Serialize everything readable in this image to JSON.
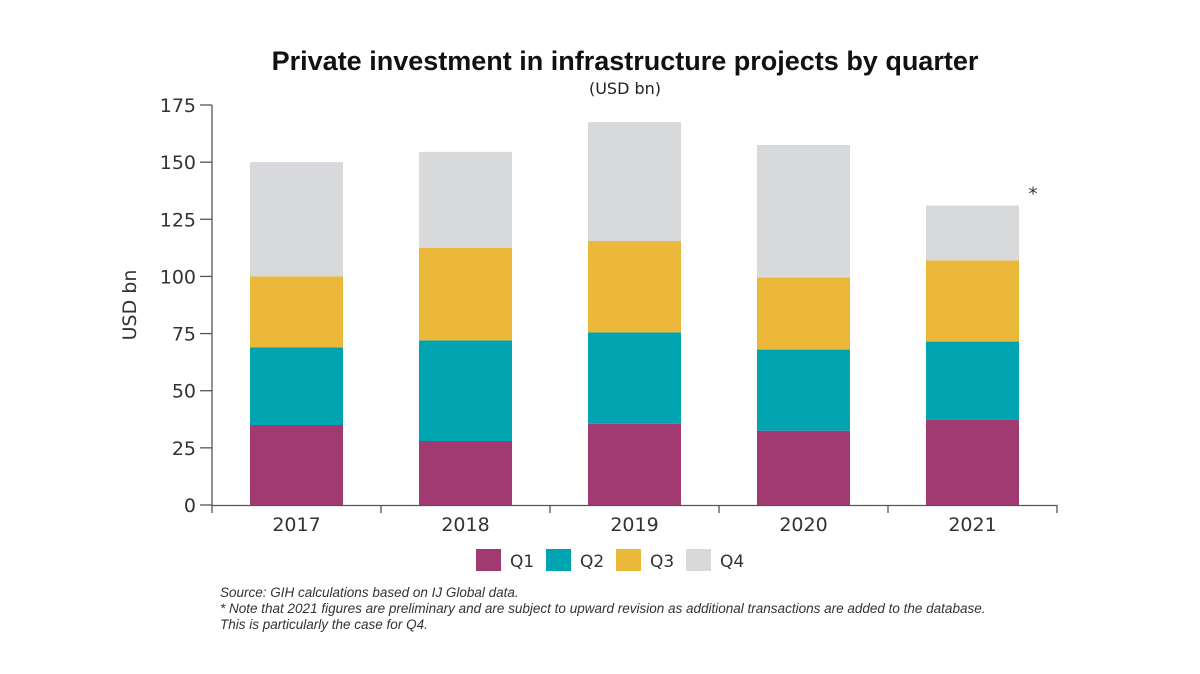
{
  "chart_data": {
    "type": "bar",
    "stacked": true,
    "title": "Private investment in infrastructure projects by quarter",
    "subtitle": "(USD bn)",
    "xlabel": "",
    "ylabel": "USD bn",
    "ylim": [
      0,
      175
    ],
    "yticks": [
      0,
      25,
      50,
      75,
      100,
      125,
      150,
      175
    ],
    "categories": [
      "2017",
      "2018",
      "2019",
      "2020",
      "2021"
    ],
    "series": [
      {
        "name": "Q1",
        "color": "#a23a72",
        "values": [
          35,
          28,
          35.5,
          32.5,
          37.5
        ]
      },
      {
        "name": "Q2",
        "color": "#00a3b0",
        "values": [
          34,
          44,
          40,
          35.5,
          34
        ]
      },
      {
        "name": "Q3",
        "color": "#ecb83a",
        "values": [
          31,
          40.5,
          40,
          31.5,
          35.5
        ]
      },
      {
        "name": "Q4",
        "color": "#d8d9db",
        "values": [
          50,
          42,
          52,
          58,
          24
        ]
      }
    ],
    "annotation": {
      "text": "*",
      "category": "2021"
    },
    "legend_position": "bottom"
  },
  "footnotes": {
    "source": "Source: GIH calculations based on IJ Global data.",
    "note": "* Note that 2021 figures are preliminary and are subject to upward revision as additional transactions are added to the database.",
    "note2": "This is particularly the case for Q4."
  }
}
